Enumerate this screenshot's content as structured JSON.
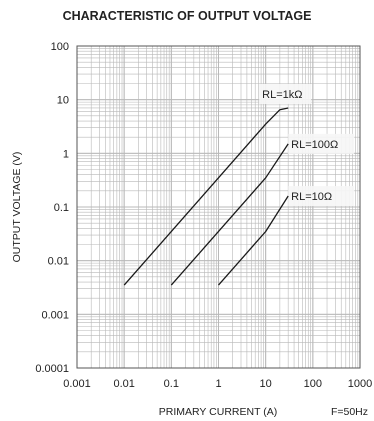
{
  "chart_data": {
    "type": "line",
    "title": "CHARACTERISTIC OF OUTPUT VOLTAGE",
    "xlabel": "PRIMARY CURRENT (A)",
    "ylabel": "OUTPUT VOLTAGE (V)",
    "note": "F=50Hz",
    "xscale": "log",
    "yscale": "log",
    "xlim": [
      0.001,
      1000
    ],
    "ylim": [
      0.0001,
      100
    ],
    "grid": true,
    "x_ticks": [
      "0.001",
      "0.01",
      "0.1",
      "1",
      "10",
      "100",
      "1000"
    ],
    "y_ticks": [
      "100",
      "10",
      "1",
      "0.1",
      "0.01",
      "0.001",
      "0.0001"
    ],
    "series": [
      {
        "name": "RL=1kΩ",
        "x": [
          0.01,
          1,
          10,
          20,
          30
        ],
        "y": [
          0.0035,
          0.35,
          3.5,
          6.5,
          7
        ]
      },
      {
        "name": "RL=100Ω",
        "x": [
          0.1,
          10,
          30
        ],
        "y": [
          0.0035,
          0.35,
          1.5
        ]
      },
      {
        "name": "RL=10Ω",
        "x": [
          1,
          10,
          30
        ],
        "y": [
          0.0035,
          0.035,
          0.16
        ]
      }
    ],
    "line_color": "#1a1a1a",
    "grid_color": "#b8b8b8"
  }
}
